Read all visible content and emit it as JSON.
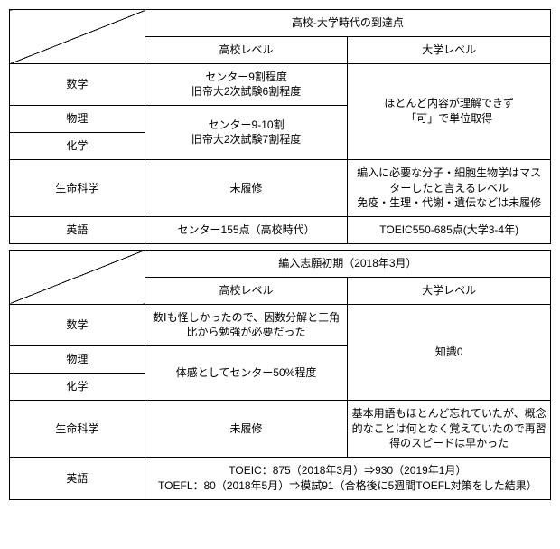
{
  "table1": {
    "header_top": "高校-大学時代の到達点",
    "col_hs": "高校レベル",
    "col_univ": "大学レベル",
    "rows": {
      "math": {
        "label": "数学",
        "hs": "センター9割程度\n旧帝大2次試験6割程度"
      },
      "phys": {
        "label": "物理"
      },
      "chem": {
        "label": "化学",
        "hs_merged": "センター9-10割\n旧帝大2次試験7割程度"
      },
      "univ_merged": "ほとんど内容が理解できず\n「可」で単位取得",
      "life": {
        "label": "生命科学",
        "hs": "未履修",
        "univ": "編入に必要な分子・細胞生物学はマスターしたと言えるレベル\n免疫・生理・代謝・遺伝などは未履修"
      },
      "eng": {
        "label": "英語",
        "hs": "センター155点（高校時代）",
        "univ": "TOEIC550-685点(大学3-4年)"
      }
    }
  },
  "table2": {
    "header_top": "編入志願初期（2018年3月）",
    "col_hs": "高校レベル",
    "col_univ": "大学レベル",
    "rows": {
      "math": {
        "label": "数学",
        "hs": "数Ⅰも怪しかったので、因数分解と三角比から勉強が必要だった"
      },
      "phys": {
        "label": "物理"
      },
      "chem": {
        "label": "化学",
        "hs_merged": "体感としてセンター50%程度"
      },
      "univ_merged": "知識0",
      "life": {
        "label": "生命科学",
        "hs": "未履修",
        "univ": "基本用語もほとんど忘れていたが、概念的なことは何となく覚えていたので再習得のスピードは早かった"
      },
      "eng": {
        "label": "英語",
        "merged": "TOEIC：875（2018年3月）⇒930（2019年1月）\nTOEFL：80（2018年5月）⇒模試91（合格後に5週間TOEFL対策をした結果）"
      }
    }
  }
}
